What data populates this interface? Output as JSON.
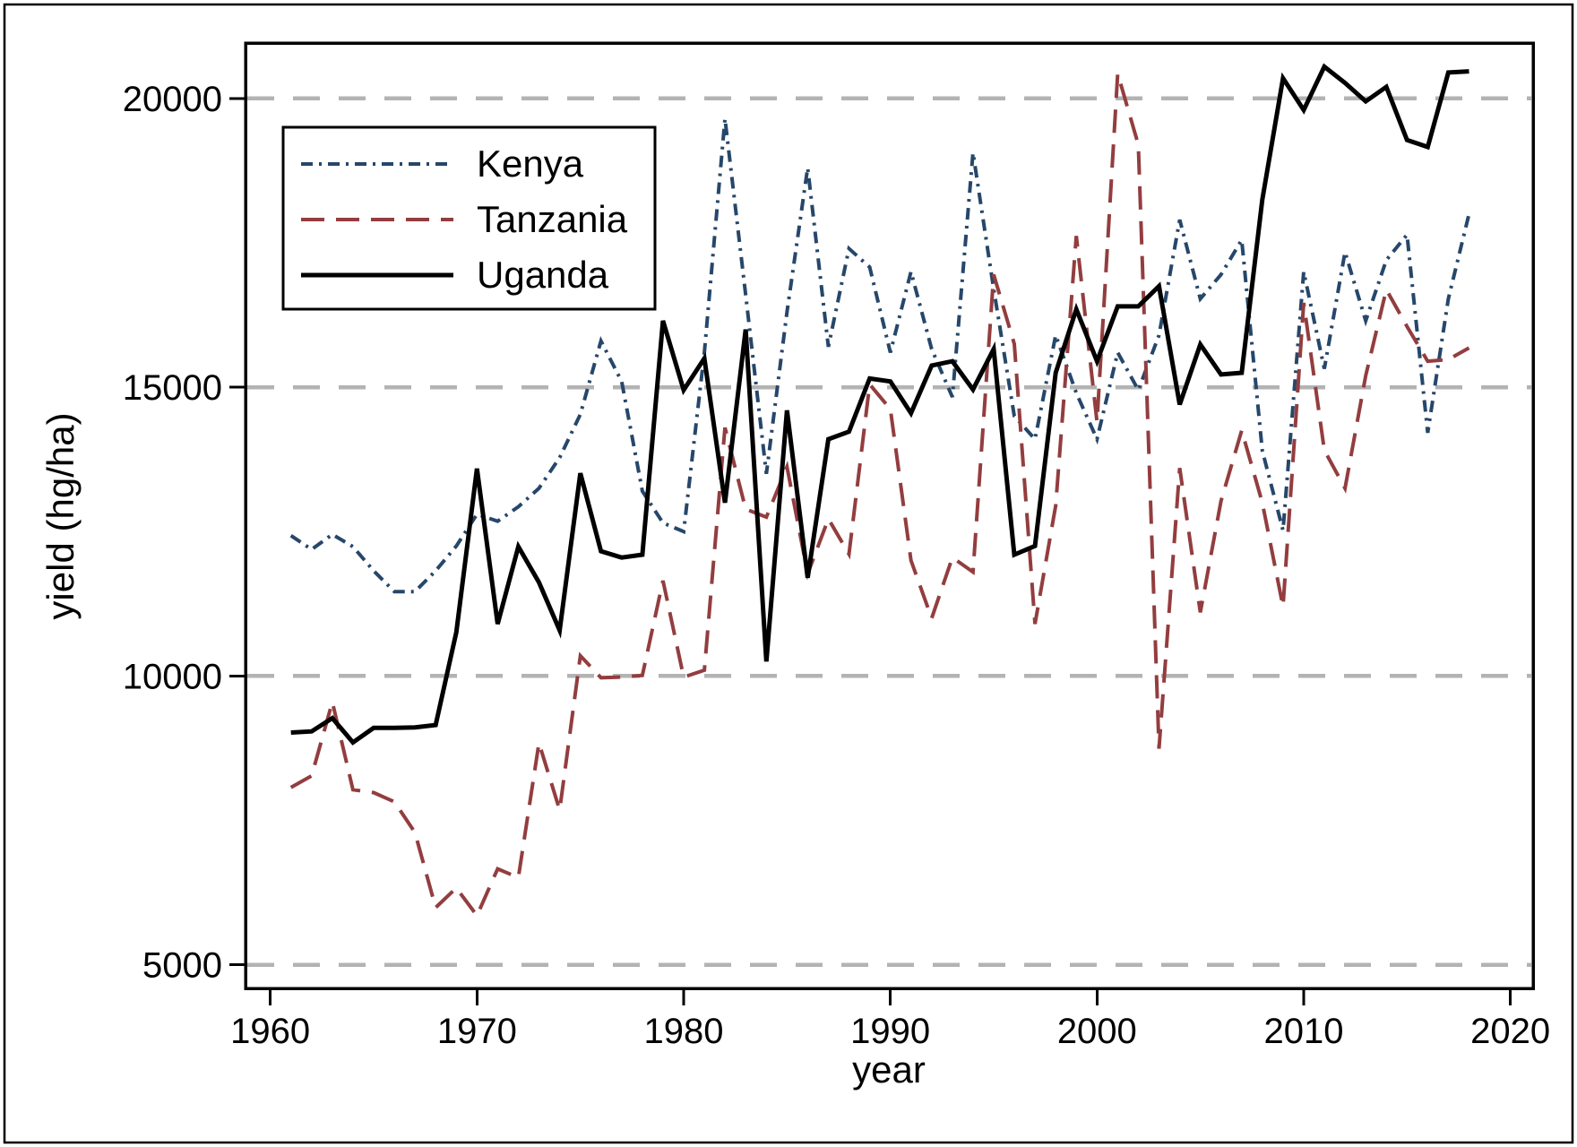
{
  "chart_data": {
    "type": "line",
    "title": "",
    "xlabel": "year",
    "ylabel": "yield (hg/ha)",
    "x_ticks": [
      1960,
      1970,
      1980,
      1990,
      2000,
      2010,
      2020
    ],
    "y_ticks": [
      5000,
      10000,
      15000,
      20000
    ],
    "xlim": [
      1958.8,
      2021.1
    ],
    "ylim": [
      4590,
      20960
    ],
    "grid": "horizontal-dashed",
    "grid_color": "#b3b3b3",
    "legend_position": "top-left-inside",
    "x": [
      1961,
      1962,
      1963,
      1964,
      1965,
      1966,
      1967,
      1968,
      1969,
      1970,
      1971,
      1972,
      1973,
      1974,
      1975,
      1976,
      1977,
      1978,
      1979,
      1980,
      1981,
      1982,
      1983,
      1984,
      1985,
      1986,
      1987,
      1988,
      1989,
      1990,
      1991,
      1992,
      1993,
      1994,
      1995,
      1996,
      1997,
      1998,
      1999,
      2000,
      2001,
      2002,
      2003,
      2004,
      2005,
      2006,
      2007,
      2008,
      2009,
      2010,
      2011,
      2012,
      2013,
      2014,
      2015,
      2016,
      2017,
      2018
    ],
    "series": [
      {
        "name": "Kenya",
        "color": "#26476a",
        "line_style": "dash-dot",
        "values": [
          12430,
          12190,
          12450,
          12240,
          11820,
          11460,
          11460,
          11820,
          12250,
          12800,
          12680,
          12930,
          13250,
          13780,
          14530,
          15800,
          15100,
          13200,
          12650,
          12500,
          15600,
          19650,
          16600,
          13500,
          16300,
          18800,
          15700,
          17400,
          17080,
          15600,
          17000,
          15660,
          14830,
          19060,
          16700,
          14500,
          14100,
          15900,
          14900,
          14100,
          15600,
          14950,
          15900,
          17900,
          16530,
          16950,
          17550,
          13900,
          12520,
          17000,
          15320,
          17340,
          16150,
          17200,
          17640,
          14210,
          16530,
          18000
        ]
      },
      {
        "name": "Tanzania",
        "color": "#933d3f",
        "line_style": "long-dash",
        "values": [
          8070,
          8270,
          9550,
          8030,
          7980,
          7820,
          7290,
          5990,
          6330,
          5850,
          6660,
          6510,
          8840,
          7680,
          10350,
          9970,
          9980,
          10010,
          11650,
          9980,
          10100,
          14300,
          12890,
          12750,
          13620,
          11770,
          12720,
          12110,
          15050,
          14620,
          12000,
          11000,
          12050,
          11800,
          16950,
          15750,
          10900,
          12950,
          17620,
          14400,
          20430,
          19200,
          8740,
          13600,
          11100,
          13030,
          14250,
          13000,
          11200,
          16460,
          13910,
          13250,
          15200,
          16690,
          16050,
          15450,
          15480,
          15680
        ]
      },
      {
        "name": "Uganda",
        "color": "#000000",
        "line_style": "solid",
        "values": [
          9020,
          9040,
          9270,
          8850,
          9100,
          9100,
          9110,
          9150,
          10760,
          13590,
          10900,
          12240,
          11620,
          10790,
          13510,
          12160,
          12050,
          12100,
          16150,
          14950,
          15500,
          13000,
          16000,
          10250,
          14600,
          11700,
          14100,
          14230,
          15150,
          15100,
          14550,
          15375,
          15450,
          14960,
          15660,
          12100,
          12250,
          15250,
          16350,
          15450,
          16400,
          16400,
          16750,
          14700,
          15740,
          15220,
          15250,
          18250,
          20350,
          19800,
          20550,
          20270,
          19950,
          20200,
          19280,
          19160,
          20450,
          20470
        ]
      }
    ]
  }
}
